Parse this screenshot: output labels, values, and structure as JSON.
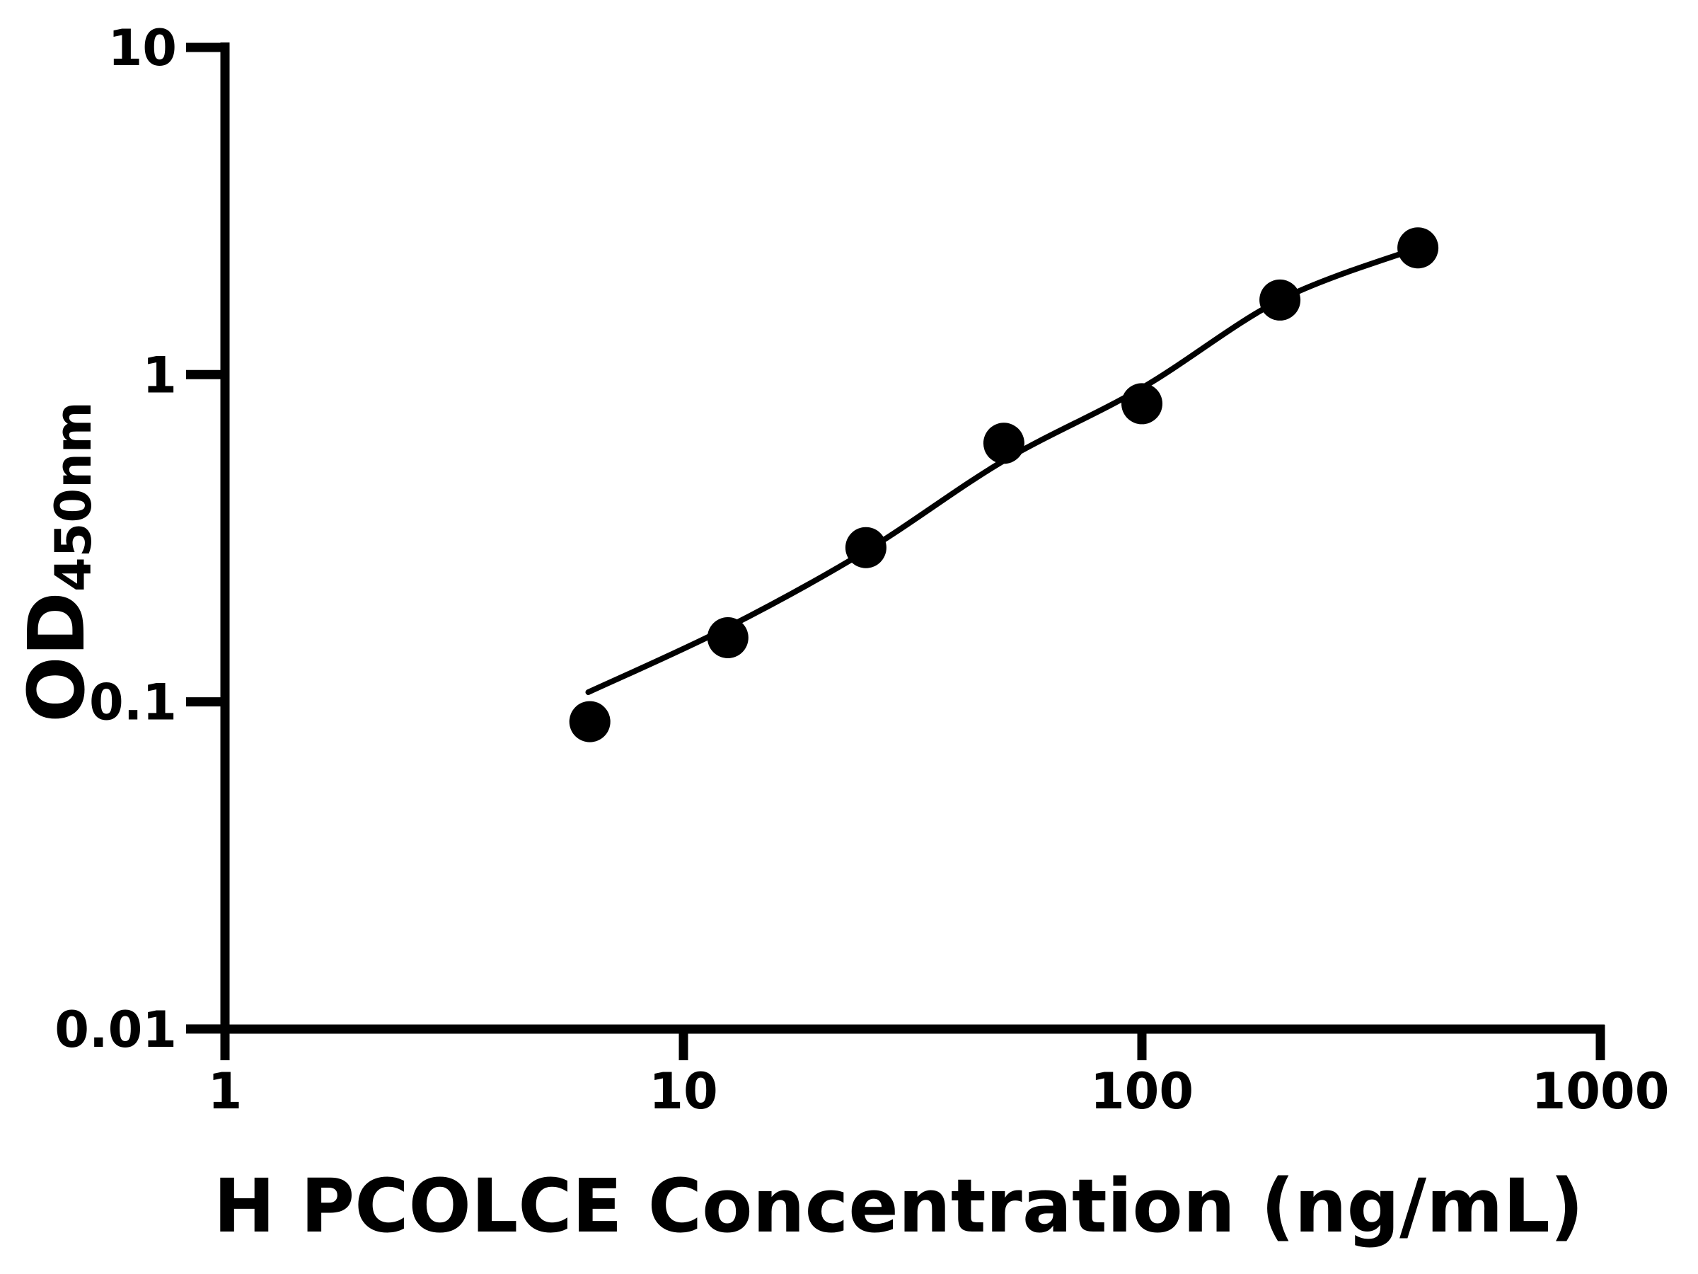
{
  "figure": {
    "background": "#ffffff",
    "foreground": "#000000"
  },
  "chart_data": {
    "type": "scatter",
    "title": "",
    "xlabel": "H PCOLCE Concentration (ng/mL)",
    "ylabel": "OD",
    "ylabel_subscript": "450nm",
    "x_scale": "log",
    "y_scale": "log",
    "xlim": [
      1,
      1000
    ],
    "ylim": [
      0.01,
      10
    ],
    "grid": false,
    "legend": "none",
    "x_ticks": [
      {
        "value": 1,
        "label": "1"
      },
      {
        "value": 10,
        "label": "10"
      },
      {
        "value": 100,
        "label": "100"
      },
      {
        "value": 1000,
        "label": "1000"
      }
    ],
    "y_ticks": [
      {
        "value": 10,
        "label": "10"
      },
      {
        "value": 1,
        "label": "1"
      },
      {
        "value": 0.1,
        "label": "0.1"
      },
      {
        "value": 0.01,
        "label": "0.01"
      }
    ],
    "series": [
      {
        "name": "standard-points",
        "type": "scatter",
        "marker": "filled-circle",
        "color": "#000000",
        "x": [
          6.25,
          12.5,
          25,
          50,
          100,
          200,
          400
        ],
        "od": [
          0.087,
          0.157,
          0.296,
          0.617,
          0.815,
          1.69,
          2.44
        ]
      },
      {
        "name": "fit-curve",
        "type": "line",
        "color": "#000000",
        "x": [
          6.2,
          12.5,
          25,
          50,
          100,
          200,
          400
        ],
        "od": [
          0.107,
          0.169,
          0.289,
          0.546,
          0.91,
          1.69,
          2.44
        ]
      }
    ]
  }
}
